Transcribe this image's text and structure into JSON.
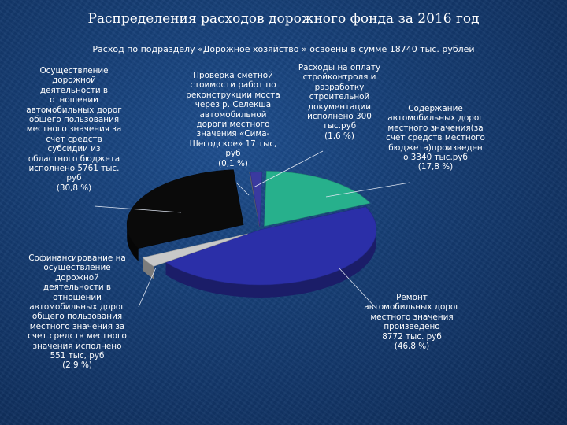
{
  "title": "Распределения расходов дорожного фонда за 2016 год",
  "subtitle": "Расход по подразделу «Дорожное хозяйство » освоены в сумме 18740 тыс. рублей",
  "colors": {
    "repair": "#2b2fa8",
    "maintenance": "#27b08c",
    "cofinance": "#c8c8c8",
    "subsidy": "#0a0a0a",
    "control": "#3a3aa0",
    "estimate": "#7a7a7a"
  },
  "chart_data": {
    "type": "pie",
    "title": "Распределения расходов дорожного фонда за 2016 год",
    "subtitle": "Расход по подразделу «Дорожное хозяйство » освоены в сумме 18740 тыс. рублей",
    "total": 18740,
    "unit": "тыс. руб",
    "slices": [
      {
        "key": "maintenance",
        "value": 3340,
        "percent": 17.8,
        "label": "Содержание\nавтомобильных дорог\nместного значения(за\nсчет средств местного\nбюджета)произведен\nо 3340 тыс.руб\n(17,8 %)"
      },
      {
        "key": "repair",
        "value": 8772,
        "percent": 46.8,
        "label": "Ремонт\nавтомобильных дорог\nместного значения\nпроизведено\n8772 тыс. руб\n(46,8 %)"
      },
      {
        "key": "cofinance",
        "value": 551,
        "percent": 2.9,
        "label": "Софинансирование на\nосуществление\nдорожной\nдеятельности в\nотношении\nавтомобильных дорог\nобщего пользования\nместного значения за\nсчет средств местного\nзначения исполнено\n551 тыс, руб\n(2,9 %)"
      },
      {
        "key": "subsidy",
        "value": 5761,
        "percent": 30.8,
        "label": "Осуществление\nдорожной\nдеятельности в\nотношении\nавтомобильных дорог\nобщего пользования\nместного значения за\nсчет средств\nсубсидии из\nобластного бюджета\nисполнено 5761 тыс.\nруб\n(30,8 %)"
      },
      {
        "key": "estimate",
        "value": 17,
        "percent": 0.1,
        "label": "Проверка сметной\nстоимости работ по\nреконструкции моста\nчерез р. Селекша\nавтомобильной\nдороги местного\nзначения «Сима-\nШегодское» 17 тыс,\nруб\n(0,1 %)"
      },
      {
        "key": "control",
        "value": 300,
        "percent": 1.6,
        "label": "Расходы на оплату\nстройконтроля и\nразработку\nстроительной\nдокументации\nисполнено 300\nтыс.руб\n(1,6 %)"
      }
    ]
  }
}
